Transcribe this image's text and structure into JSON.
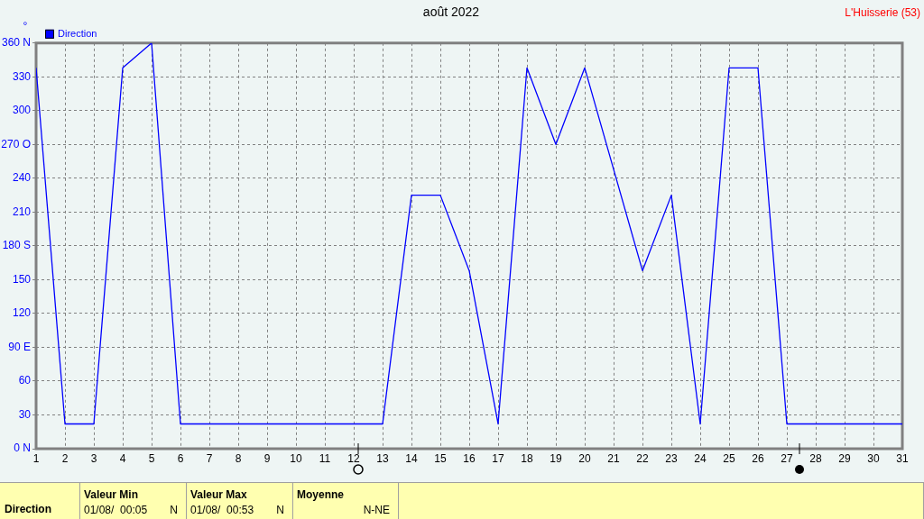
{
  "chart_data": {
    "type": "line",
    "title": "août 2022",
    "ylabel": "°",
    "annotations": [
      "L'Huisserie (53)",
      "Direction",
      "Valeur Min",
      "01/08/  00:05",
      "N",
      "Valeur Max",
      "01/08/  00:53",
      "N",
      "Moyenne",
      "N-NE"
    ],
    "x": [
      1,
      2,
      3,
      4,
      5,
      6,
      7,
      8,
      9,
      10,
      11,
      12,
      13,
      14,
      15,
      16,
      17,
      18,
      19,
      20,
      21,
      22,
      23,
      24,
      25,
      26,
      27,
      28,
      29,
      30,
      31
    ],
    "series": [
      {
        "name": "Direction",
        "color": "#0000ff",
        "values": [
          338,
          22,
          22,
          338,
          360,
          22,
          22,
          22,
          22,
          22,
          22,
          22,
          22,
          225,
          225,
          158,
          22,
          338,
          270,
          338,
          248,
          158,
          225,
          22,
          338,
          338,
          22,
          22,
          22,
          22,
          22
        ]
      }
    ],
    "xlim": [
      1,
      31
    ],
    "xticks": [
      1,
      2,
      3,
      4,
      5,
      6,
      7,
      8,
      9,
      10,
      11,
      12,
      13,
      14,
      15,
      16,
      17,
      18,
      19,
      20,
      21,
      22,
      23,
      24,
      25,
      26,
      27,
      28,
      29,
      30,
      31
    ],
    "ylim": [
      0,
      360
    ],
    "yticks": [
      {
        "value": 0,
        "label": "0 N"
      },
      30,
      60,
      {
        "value": 90,
        "label": "90 E"
      },
      120,
      150,
      {
        "value": 180,
        "label": "180 S"
      },
      210,
      240,
      {
        "value": 270,
        "label": "270 O"
      },
      300,
      330,
      {
        "value": 360,
        "label": "360 N"
      }
    ],
    "grid": true,
    "legend": "top left",
    "marker": "none"
  }
}
